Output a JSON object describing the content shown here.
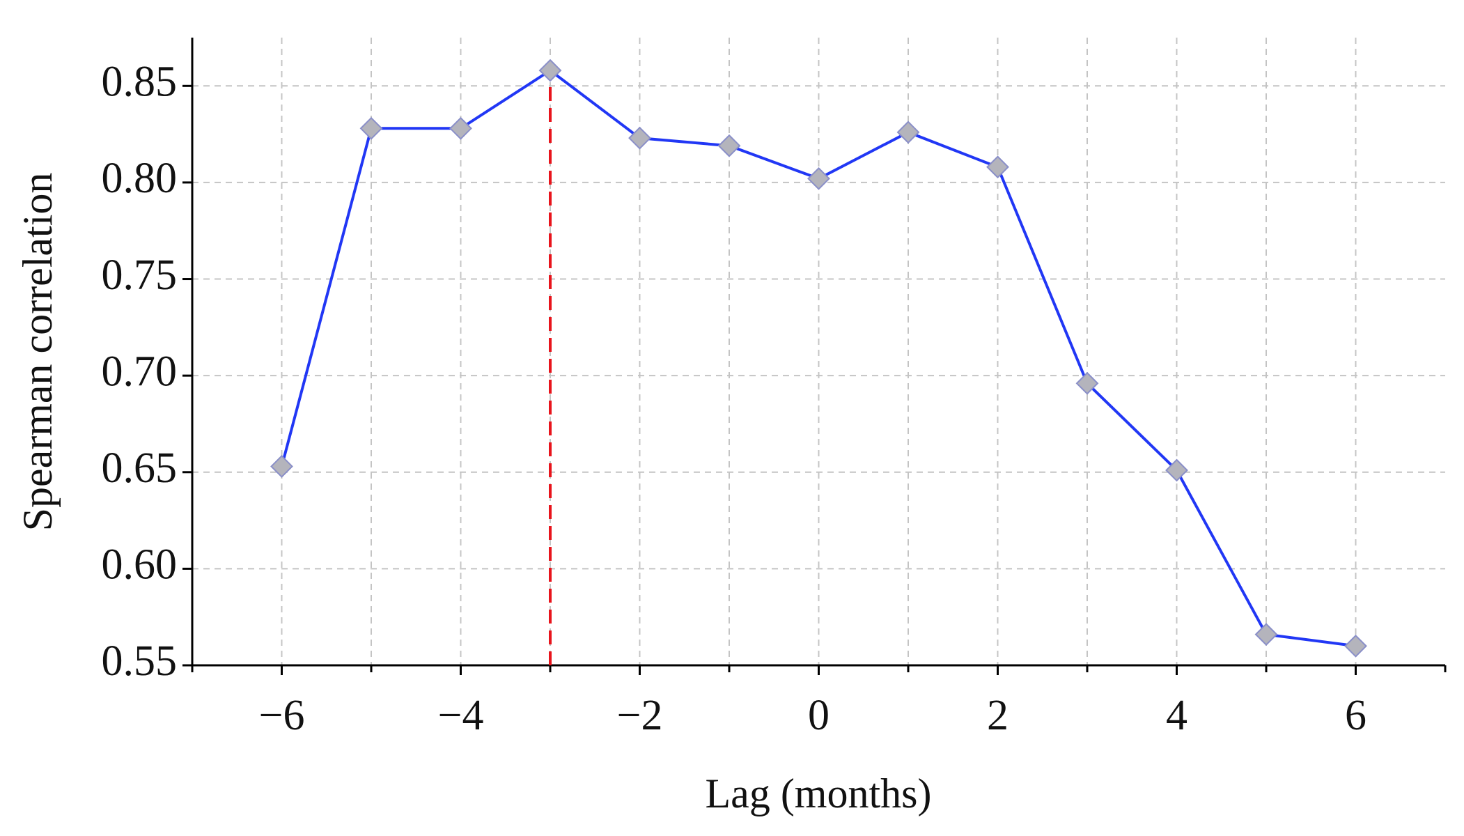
{
  "chart_data": {
    "type": "line",
    "x_label": "Lag (months)",
    "y_label": "Spearman correlation",
    "x": [
      -6,
      -5,
      -4,
      -3,
      -2,
      -1,
      0,
      1,
      2,
      3,
      4,
      5,
      6
    ],
    "series": [
      {
        "color": "#2137f5",
        "marker_color": "#b4b4bc",
        "values": [
          0.653,
          0.828,
          0.828,
          0.858,
          0.823,
          0.819,
          0.802,
          0.826,
          0.808,
          0.696,
          0.651,
          0.566,
          0.56
        ]
      }
    ],
    "xlim": [
      -7,
      7
    ],
    "xticks": [
      {
        "value": -6,
        "label": "−6"
      },
      {
        "value": -4,
        "label": "−4"
      },
      {
        "value": -2,
        "label": "−2"
      },
      0,
      2,
      4,
      6
    ],
    "x_minor_ticks": [
      -7,
      -5,
      -3,
      -1,
      1,
      3,
      5,
      7
    ],
    "ylim": [
      0.55,
      0.875
    ],
    "yticks": [
      0.55,
      {
        "value": 0.6,
        "label": "0.60"
      },
      0.65,
      {
        "value": 0.7,
        "label": "0.70"
      },
      0.75,
      {
        "value": 0.8,
        "label": "0.80"
      },
      0.85
    ],
    "grid": true,
    "vline": {
      "x": -3,
      "color": "#e8141c"
    }
  }
}
